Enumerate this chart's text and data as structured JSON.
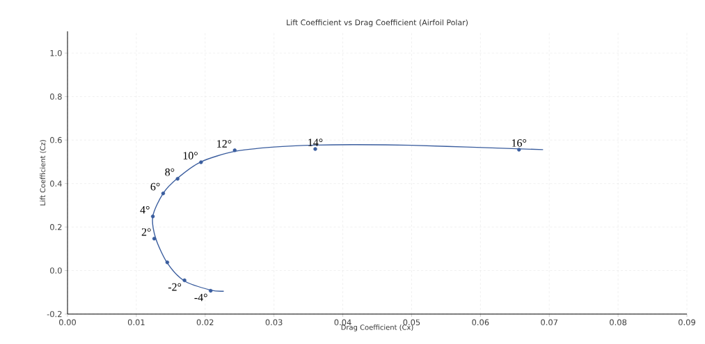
{
  "chart_data": {
    "type": "line",
    "title": "Lift Coefficient vs Drag Coefficient (Airfoil Polar)",
    "xlabel": "Drag Coefficient (Cx)",
    "ylabel": "Lift Coefficient (Cz)",
    "xlim": [
      0,
      0.09
    ],
    "xticks": [
      {
        "value": 0,
        "label": "0.00"
      },
      0.01,
      0.02,
      0.03,
      0.04,
      0.05,
      0.06,
      0.07,
      0.08,
      0.09
    ],
    "ylim": [
      -0.2,
      1.1
    ],
    "yticks": [
      -0.2,
      {
        "value": 0,
        "label": "0.0"
      },
      0.2,
      0.4,
      0.6,
      0.8,
      {
        "value": 1,
        "label": "1.0"
      }
    ],
    "grid": true,
    "line_style": "solid",
    "series": [
      {
        "color": "#3a5d9e",
        "marker": "none",
        "x": [
          0.0227,
          0.0208,
          0.017,
          0.0145,
          0.0128,
          0.0124,
          0.0139,
          0.016,
          0.0194,
          0.0243,
          0.03,
          0.036,
          0.042,
          0.05,
          0.058,
          0.0691
        ],
        "values": [
          -0.095,
          -0.09,
          -0.048,
          0.035,
          0.15,
          0.25,
          0.355,
          0.425,
          0.5,
          0.548,
          0.568,
          0.577,
          0.579,
          0.576,
          0.568,
          0.556
        ]
      },
      {
        "type": "scatter",
        "color": "#3a5d9e",
        "marker": "circle",
        "x": [
          0.0208,
          0.017,
          0.0145,
          0.0126,
          0.0124,
          0.0139,
          0.016,
          0.0194,
          0.0243,
          0.036,
          0.0656
        ],
        "values": [
          -0.093,
          -0.045,
          0.038,
          0.147,
          0.249,
          0.355,
          0.422,
          0.498,
          0.553,
          0.559,
          0.556
        ]
      }
    ],
    "annotations": [
      {
        "text": "-4°",
        "x": 0.0208,
        "y": -0.093
      },
      {
        "text": "-2°",
        "x": 0.017,
        "y": -0.045
      },
      {
        "text": "2°",
        "x": 0.0126,
        "y": 0.147
      },
      {
        "text": "4°",
        "x": 0.0124,
        "y": 0.249
      },
      {
        "text": "6°",
        "x": 0.0139,
        "y": 0.355
      },
      {
        "text": "8°",
        "x": 0.016,
        "y": 0.422
      },
      {
        "text": "10°",
        "x": 0.0194,
        "y": 0.498
      },
      {
        "text": "12°",
        "x": 0.0243,
        "y": 0.553
      },
      {
        "text": "14°",
        "x": 0.036,
        "y": 0.559
      },
      {
        "text": "16°",
        "x": 0.0656,
        "y": 0.556
      }
    ]
  }
}
